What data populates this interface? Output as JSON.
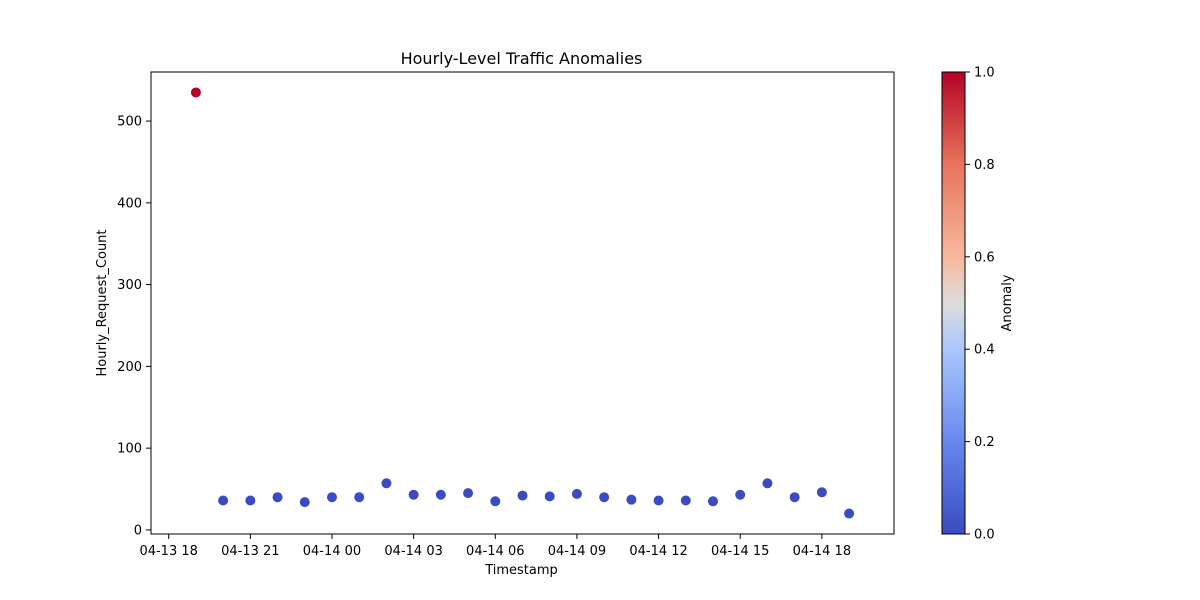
{
  "chart_data": {
    "type": "scatter",
    "title": "Hourly-Level Traffic Anomalies",
    "xlabel": "Timestamp",
    "ylabel": "Hourly_Request_Count",
    "x_tick_labels": [
      "04-13 18",
      "04-13 21",
      "04-14 00",
      "04-14 03",
      "04-14 06",
      "04-14 09",
      "04-14 12",
      "04-14 15",
      "04-14 18"
    ],
    "x_tick_hours": [
      0,
      3,
      6,
      9,
      12,
      15,
      18,
      21,
      24
    ],
    "x_range_hours": [
      -0.65,
      26.65
    ],
    "y_ticks": [
      0,
      100,
      200,
      300,
      400,
      500
    ],
    "ylim": [
      -5,
      560
    ],
    "grid": false,
    "colorbar": {
      "label": "Anomaly",
      "ticks": [
        "0.0",
        "0.2",
        "0.4",
        "0.6",
        "0.8",
        "1.0"
      ],
      "range": [
        0,
        1
      ],
      "colormap": "coolwarm",
      "low_color": "#3b4cc0",
      "mid_color": "#dddddd",
      "high_color": "#b40426"
    },
    "points": [
      {
        "hour": 1,
        "value": 535,
        "anomaly": 1
      },
      {
        "hour": 2,
        "value": 36,
        "anomaly": 0
      },
      {
        "hour": 3,
        "value": 36,
        "anomaly": 0
      },
      {
        "hour": 4,
        "value": 40,
        "anomaly": 0
      },
      {
        "hour": 5,
        "value": 34,
        "anomaly": 0
      },
      {
        "hour": 6,
        "value": 40,
        "anomaly": 0
      },
      {
        "hour": 7,
        "value": 40,
        "anomaly": 0
      },
      {
        "hour": 8,
        "value": 57,
        "anomaly": 0
      },
      {
        "hour": 9,
        "value": 43,
        "anomaly": 0
      },
      {
        "hour": 10,
        "value": 43,
        "anomaly": 0
      },
      {
        "hour": 11,
        "value": 45,
        "anomaly": 0
      },
      {
        "hour": 12,
        "value": 35,
        "anomaly": 0
      },
      {
        "hour": 13,
        "value": 42,
        "anomaly": 0
      },
      {
        "hour": 14,
        "value": 41,
        "anomaly": 0
      },
      {
        "hour": 15,
        "value": 44,
        "anomaly": 0
      },
      {
        "hour": 16,
        "value": 40,
        "anomaly": 0
      },
      {
        "hour": 17,
        "value": 37,
        "anomaly": 0
      },
      {
        "hour": 18,
        "value": 36,
        "anomaly": 0
      },
      {
        "hour": 19,
        "value": 36,
        "anomaly": 0
      },
      {
        "hour": 20,
        "value": 35,
        "anomaly": 0
      },
      {
        "hour": 21,
        "value": 43,
        "anomaly": 0
      },
      {
        "hour": 22,
        "value": 57,
        "anomaly": 0
      },
      {
        "hour": 23,
        "value": 40,
        "anomaly": 0
      },
      {
        "hour": 24,
        "value": 46,
        "anomaly": 0
      },
      {
        "hour": 25,
        "value": 20,
        "anomaly": 0
      }
    ]
  }
}
